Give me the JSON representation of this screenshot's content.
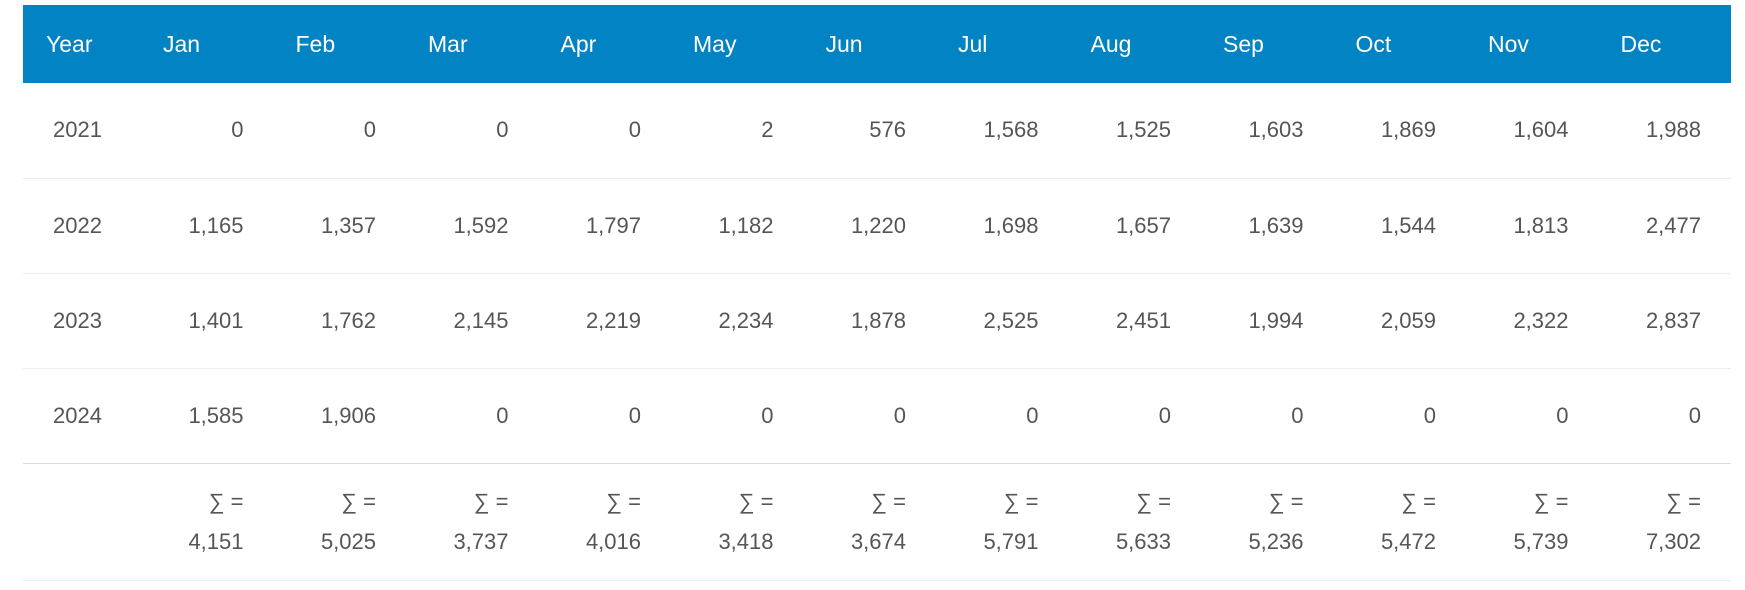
{
  "table": {
    "headers": [
      "Year",
      "Jan",
      "Feb",
      "Mar",
      "Apr",
      "May",
      "Jun",
      "Jul",
      "Aug",
      "Sep",
      "Oct",
      "Nov",
      "Dec"
    ],
    "rows": [
      {
        "year": "2021",
        "values": [
          "0",
          "0",
          "0",
          "0",
          "2",
          "576",
          "1,568",
          "1,525",
          "1,603",
          "1,869",
          "1,604",
          "1,988"
        ]
      },
      {
        "year": "2022",
        "values": [
          "1,165",
          "1,357",
          "1,592",
          "1,797",
          "1,182",
          "1,220",
          "1,698",
          "1,657",
          "1,639",
          "1,544",
          "1,813",
          "2,477"
        ]
      },
      {
        "year": "2023",
        "values": [
          "1,401",
          "1,762",
          "2,145",
          "2,219",
          "2,234",
          "1,878",
          "2,525",
          "2,451",
          "1,994",
          "2,059",
          "2,322",
          "2,837"
        ]
      },
      {
        "year": "2024",
        "values": [
          "1,585",
          "1,906",
          "0",
          "0",
          "0",
          "0",
          "0",
          "0",
          "0",
          "0",
          "0",
          "0"
        ]
      }
    ],
    "sum_label": "∑ =",
    "sums": [
      "4,151",
      "5,025",
      "3,737",
      "4,016",
      "3,418",
      "3,674",
      "5,791",
      "5,633",
      "5,236",
      "5,472",
      "5,739",
      "7,302"
    ]
  },
  "colors": {
    "header_bg": "#0283c3",
    "header_text": "#ffffff",
    "body_text": "#555555"
  }
}
